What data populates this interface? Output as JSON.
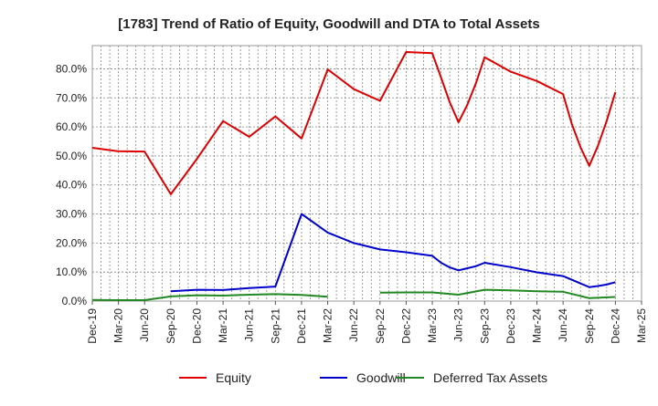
{
  "chart_data": {
    "type": "line",
    "title": "[1783]  Trend of Ratio of Equity, Goodwill and DTA to Total Assets",
    "xlabel": "",
    "ylabel": "",
    "ylim": [
      0,
      88
    ],
    "yticks": [
      0,
      10,
      20,
      30,
      40,
      50,
      60,
      70,
      80
    ],
    "ytick_labels": [
      "0.0%",
      "10.0%",
      "20.0%",
      "30.0%",
      "40.0%",
      "50.0%",
      "60.0%",
      "70.0%",
      "80.0%"
    ],
    "x": [
      "Dec-19",
      "Jan-20",
      "Feb-20",
      "Mar-20",
      "Apr-20",
      "May-20",
      "Jun-20",
      "Jul-20",
      "Aug-20",
      "Sep-20",
      "Oct-20",
      "Nov-20",
      "Dec-20",
      "Jan-21",
      "Feb-21",
      "Mar-21",
      "Apr-21",
      "May-21",
      "Jun-21",
      "Jul-21",
      "Aug-21",
      "Sep-21",
      "Oct-21",
      "Nov-21",
      "Dec-21",
      "Jan-22",
      "Feb-22",
      "Mar-22",
      "Apr-22",
      "May-22",
      "Jun-22",
      "Jul-22",
      "Aug-22",
      "Sep-22",
      "Oct-22",
      "Nov-22",
      "Dec-22",
      "Jan-23",
      "Feb-23",
      "Mar-23",
      "Apr-23",
      "May-23",
      "Jun-23",
      "Jul-23",
      "Aug-23",
      "Sep-23",
      "Oct-23",
      "Nov-23",
      "Dec-23",
      "Jan-24",
      "Feb-24",
      "Mar-24",
      "Apr-24",
      "May-24",
      "Jun-24",
      "Jul-24",
      "Aug-24",
      "Sep-24",
      "Oct-24",
      "Nov-24",
      "Dec-24",
      "Jan-25",
      "Feb-25",
      "Mar-25"
    ],
    "x_tick_labels": [
      "Dec-19",
      "Mar-20",
      "Jun-20",
      "Sep-20",
      "Dec-20",
      "Mar-21",
      "Jun-21",
      "Sep-21",
      "Dec-21",
      "Mar-22",
      "Jun-22",
      "Sep-22",
      "Dec-22",
      "Mar-23",
      "Jun-23",
      "Sep-23",
      "Dec-23",
      "Mar-24",
      "Jun-24",
      "Sep-24",
      "Dec-24",
      "Mar-25"
    ],
    "grid": true,
    "legend_position": "bottom",
    "series": [
      {
        "name": "Equity",
        "color": "#dd0000",
        "points": [
          [
            "Dec-19",
            52.8
          ],
          [
            "Mar-20",
            51.6
          ],
          [
            "Jun-20",
            51.5
          ],
          [
            "Sep-20",
            36.8
          ],
          [
            "Dec-20",
            49.0
          ],
          [
            "Mar-21",
            62.0
          ],
          [
            "Jun-21",
            56.6
          ],
          [
            "Sep-21",
            63.6
          ],
          [
            "Dec-21",
            56.0
          ],
          [
            "Mar-22",
            79.8
          ],
          [
            "Jun-22",
            73.0
          ],
          [
            "Sep-22",
            69.0
          ],
          [
            "Dec-22",
            85.8
          ],
          [
            "Mar-23",
            85.4
          ],
          [
            "Apr-23",
            77.0
          ],
          [
            "May-23",
            68.5
          ],
          [
            "Jun-23",
            61.6
          ],
          [
            "Jul-23",
            67.5
          ],
          [
            "Aug-23",
            75.0
          ],
          [
            "Sep-23",
            84.0
          ],
          [
            "Dec-23",
            79.0
          ],
          [
            "Mar-24",
            75.8
          ],
          [
            "Jun-24",
            71.3
          ],
          [
            "Jul-24",
            61.0
          ],
          [
            "Aug-24",
            53.0
          ],
          [
            "Sep-24",
            46.6
          ],
          [
            "Oct-24",
            53.5
          ],
          [
            "Nov-24",
            62.0
          ],
          [
            "Dec-24",
            72.0
          ]
        ]
      },
      {
        "name": "Goodwill",
        "color": "#0000cc",
        "points": [
          [
            "Sep-20",
            3.4
          ],
          [
            "Dec-20",
            3.9
          ],
          [
            "Mar-21",
            3.8
          ],
          [
            "Jun-21",
            4.5
          ],
          [
            "Sep-21",
            5.0
          ],
          [
            "Dec-21",
            30.0
          ],
          [
            "Mar-22",
            23.6
          ],
          [
            "Jun-22",
            20.0
          ],
          [
            "Sep-22",
            17.8
          ],
          [
            "Dec-22",
            16.8
          ],
          [
            "Mar-23",
            15.6
          ],
          [
            "Apr-23",
            13.2
          ],
          [
            "May-23",
            11.6
          ],
          [
            "Jun-23",
            10.6
          ],
          [
            "Aug-23",
            12.0
          ],
          [
            "Sep-23",
            13.2
          ],
          [
            "Dec-23",
            11.7
          ],
          [
            "Mar-24",
            9.9
          ],
          [
            "Jun-24",
            8.6
          ],
          [
            "Sep-24",
            4.8
          ],
          [
            "Oct-24",
            5.2
          ],
          [
            "Nov-24",
            5.7
          ],
          [
            "Dec-24",
            6.5
          ]
        ]
      },
      {
        "name": "Deferred Tax Assets",
        "color": "#228822",
        "segments": [
          [
            [
              "Dec-19",
              0.4
            ],
            [
              "Mar-20",
              0.3
            ],
            [
              "Jun-20",
              0.3
            ],
            [
              "Sep-20",
              1.6
            ],
            [
              "Dec-20",
              2.0
            ],
            [
              "Mar-21",
              1.9
            ],
            [
              "Jun-21",
              2.2
            ],
            [
              "Sep-21",
              2.4
            ],
            [
              "Dec-21",
              2.1
            ],
            [
              "Mar-22",
              1.5
            ]
          ],
          [
            [
              "Sep-22",
              2.9
            ],
            [
              "Dec-22",
              3.0
            ],
            [
              "Mar-23",
              3.0
            ],
            [
              "Jun-23",
              2.2
            ],
            [
              "Sep-23",
              3.9
            ],
            [
              "Dec-23",
              3.7
            ],
            [
              "Mar-24",
              3.4
            ],
            [
              "Jun-24",
              3.2
            ],
            [
              "Sep-24",
              1.0
            ],
            [
              "Dec-24",
              1.4
            ]
          ]
        ]
      }
    ]
  }
}
